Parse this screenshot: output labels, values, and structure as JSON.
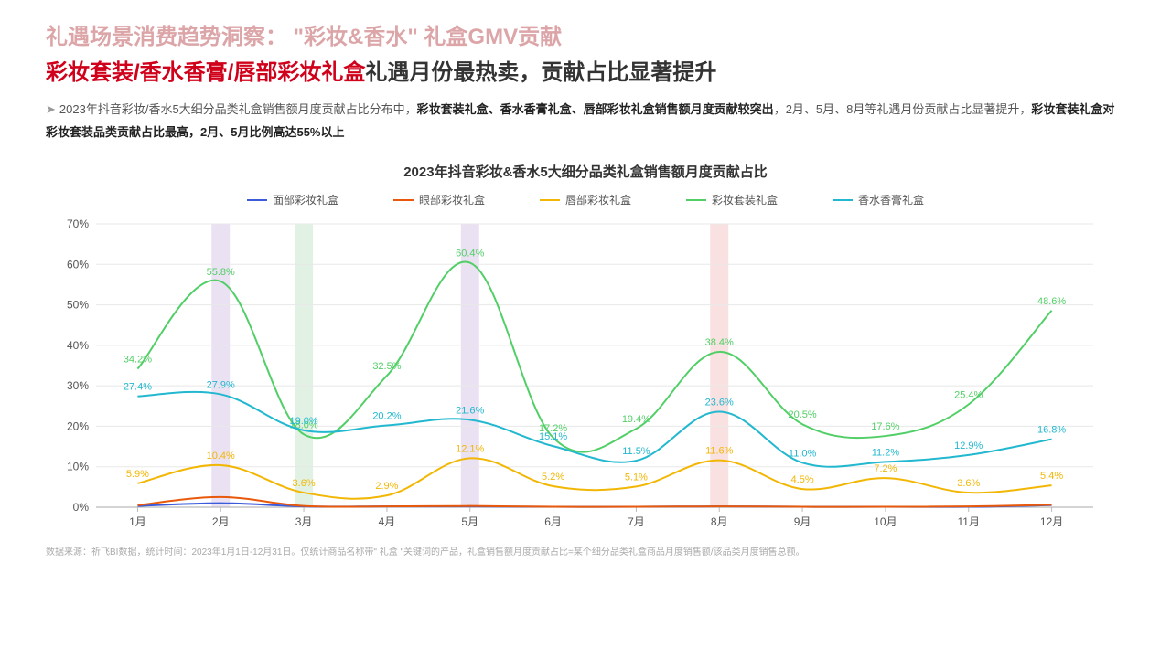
{
  "header": {
    "line1": "礼遇场景消费趋势洞察：  \"彩妆&香水\" 礼盒GMV贡献",
    "line2_red": "彩妆套装/香水香膏/唇部彩妆礼盒",
    "line2_black": "礼遇月份最热卖，贡献占比显著提升"
  },
  "description": {
    "pre": "2023年抖音彩妆/香水5大细分品类礼盒销售额月度贡献占比分布中，",
    "bold1": "彩妆套装礼盒、香水香膏礼盒、唇部彩妆礼盒销售额月度贡献较突出",
    "mid": "，2月、5月、8月等礼遇月份贡献占比显著提升，",
    "bold2": "彩妆套装礼盒对彩妆套装品类贡献占比最高，2月、5月比例高达55%以上"
  },
  "chart": {
    "title": "2023年抖音彩妆&香水5大细分品类礼盒销售额月度贡献占比",
    "type": "line",
    "background": "#ffffff",
    "grid_color": "#e8e8e8",
    "axis_color": "#bbbbbb",
    "ylim": [
      0,
      70
    ],
    "ytick_step": 10,
    "x_labels": [
      "1月",
      "2月",
      "3月",
      "4月",
      "5月",
      "6月",
      "7月",
      "8月",
      "9月",
      "10月",
      "11月",
      "12月"
    ],
    "axis_fontsize": 12,
    "axis_text_color": "#555555",
    "highlight_bars": [
      {
        "x": 1,
        "color": "#d9c8e8"
      },
      {
        "x": 2,
        "color": "#c8e8d0"
      },
      {
        "x": 4,
        "color": "#d9c8e8"
      },
      {
        "x": 7,
        "color": "#f5c8c8"
      }
    ],
    "series": [
      {
        "name": "面部彩妆礼盒",
        "color": "#3b5bdb",
        "width": 2,
        "values": [
          0.3,
          1.0,
          0.2,
          0.2,
          0.2,
          0.1,
          0.1,
          0.2,
          0.1,
          0.1,
          0.1,
          0.5
        ]
      },
      {
        "name": "眼部彩妆礼盒",
        "color": "#e8590c",
        "width": 2,
        "values": [
          0.5,
          2.5,
          0.3,
          0.2,
          0.3,
          0.1,
          0.1,
          0.2,
          0.1,
          0.1,
          0.2,
          0.6
        ]
      },
      {
        "name": "唇部彩妆礼盒",
        "color": "#f2b705",
        "width": 2,
        "values": [
          5.9,
          10.4,
          3.6,
          2.9,
          12.1,
          5.2,
          5.1,
          11.6,
          4.5,
          7.2,
          3.6,
          5.4
        ],
        "show_labels": true
      },
      {
        "name": "彩妆套装礼盒",
        "color": "#51cf66",
        "width": 2,
        "values": [
          34.2,
          55.8,
          18.0,
          32.5,
          60.4,
          17.2,
          19.4,
          38.4,
          20.5,
          17.6,
          25.4,
          48.6
        ],
        "show_labels": true
      },
      {
        "name": "香水香膏礼盒",
        "color": "#22b8cf",
        "width": 2,
        "values": [
          27.4,
          27.9,
          19.0,
          20.2,
          21.6,
          15.1,
          11.5,
          23.6,
          11.0,
          11.2,
          12.9,
          16.8
        ],
        "show_labels": true
      }
    ],
    "label_fontsize": 11
  },
  "source": "数据来源：祈飞BI数据，统计时间：2023年1月1日-12月31日。仅统计商品名称带\" 礼盒 \"关键词的产品，礼盒销售额月度贡献占比=某个细分品类礼盒商品月度销售额/该品类月度销售总额。"
}
